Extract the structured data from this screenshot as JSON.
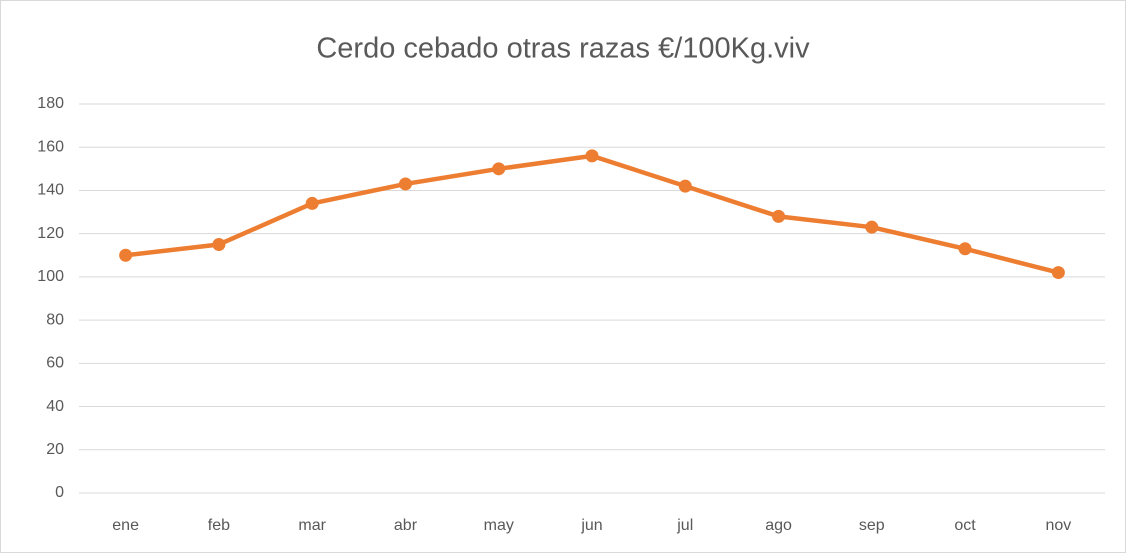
{
  "chart_data": {
    "type": "line",
    "title": "Cerdo cebado otras razas €/100Kg.viv",
    "categories": [
      "ene",
      "feb",
      "mar",
      "abr",
      "may",
      "jun",
      "jul",
      "ago",
      "sep",
      "oct",
      "nov"
    ],
    "values": [
      110,
      115,
      134,
      143,
      150,
      156,
      142,
      128,
      123,
      113,
      102
    ],
    "color": "#ed7d31",
    "ylim": [
      0,
      180
    ],
    "yticks": [
      0,
      20,
      40,
      60,
      80,
      100,
      120,
      140,
      160,
      180
    ],
    "grid": true
  }
}
